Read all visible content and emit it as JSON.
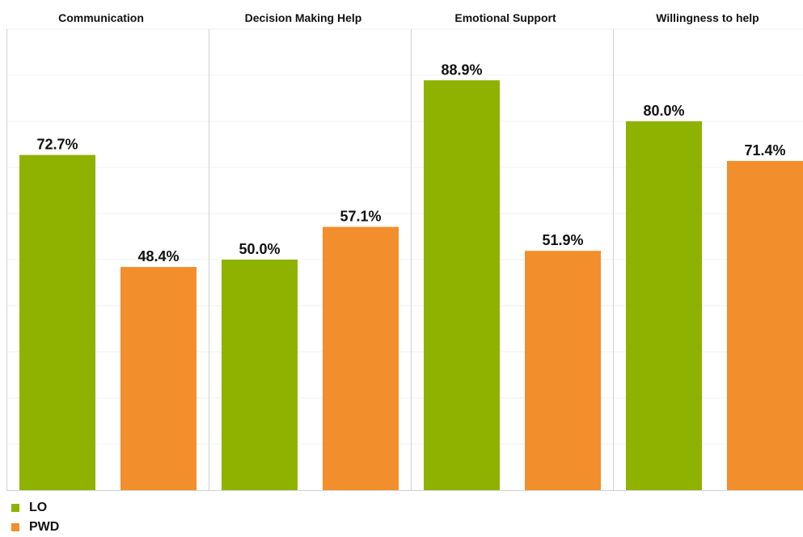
{
  "colors": {
    "LO": "#8fb200",
    "PWD": "#f28e2c",
    "grid": "#f0f0f0",
    "divider": "#d0d0d0",
    "text": "#111111"
  },
  "legend": {
    "items": [
      {
        "label": "LO",
        "color": "#8fb200"
      },
      {
        "label": "PWD",
        "color": "#f28e2c"
      }
    ],
    "placement": "bottom-left"
  },
  "chart_data": {
    "type": "bar",
    "layout": "small-multiples",
    "categories": [
      "Communication",
      "Decision Making Help",
      "Emotional Support",
      "Willingness to help"
    ],
    "series": [
      {
        "name": "LO",
        "values": [
          72.7,
          50.0,
          88.9,
          80.0
        ],
        "labels": [
          "72.7%",
          "50.0%",
          "88.9%",
          "80.0%"
        ]
      },
      {
        "name": "PWD",
        "values": [
          48.4,
          57.1,
          51.9,
          71.4
        ],
        "labels": [
          "48.4%",
          "57.1%",
          "51.9%",
          "71.4%"
        ]
      }
    ],
    "ylim": [
      0,
      100
    ],
    "grid": true,
    "xlabel": "",
    "ylabel": ""
  }
}
